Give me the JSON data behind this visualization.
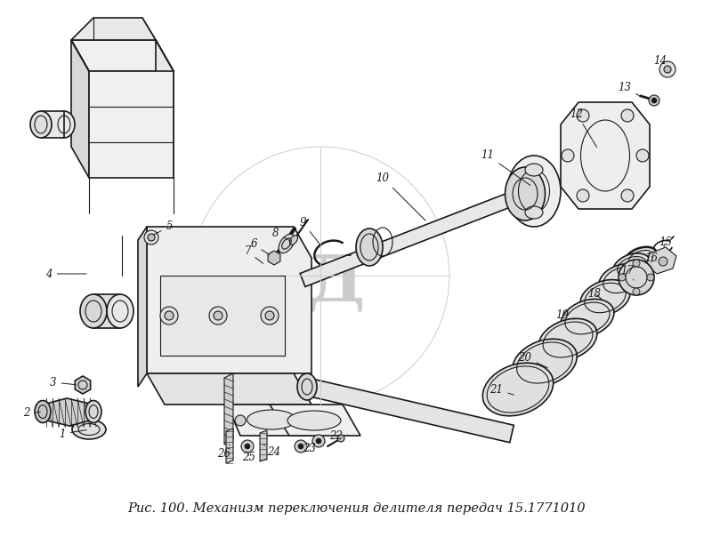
{
  "caption": "Рис. 100. Механизм переключения делителя передач 15.1771010",
  "bg_color": "#ffffff",
  "drawing_color": "#1a1a1a",
  "watermark_color": "#cccccc",
  "fig_width": 8.0,
  "fig_height": 6.04,
  "dpi": 100,
  "caption_fontsize": 10.5,
  "label_fontsize": 8.5
}
